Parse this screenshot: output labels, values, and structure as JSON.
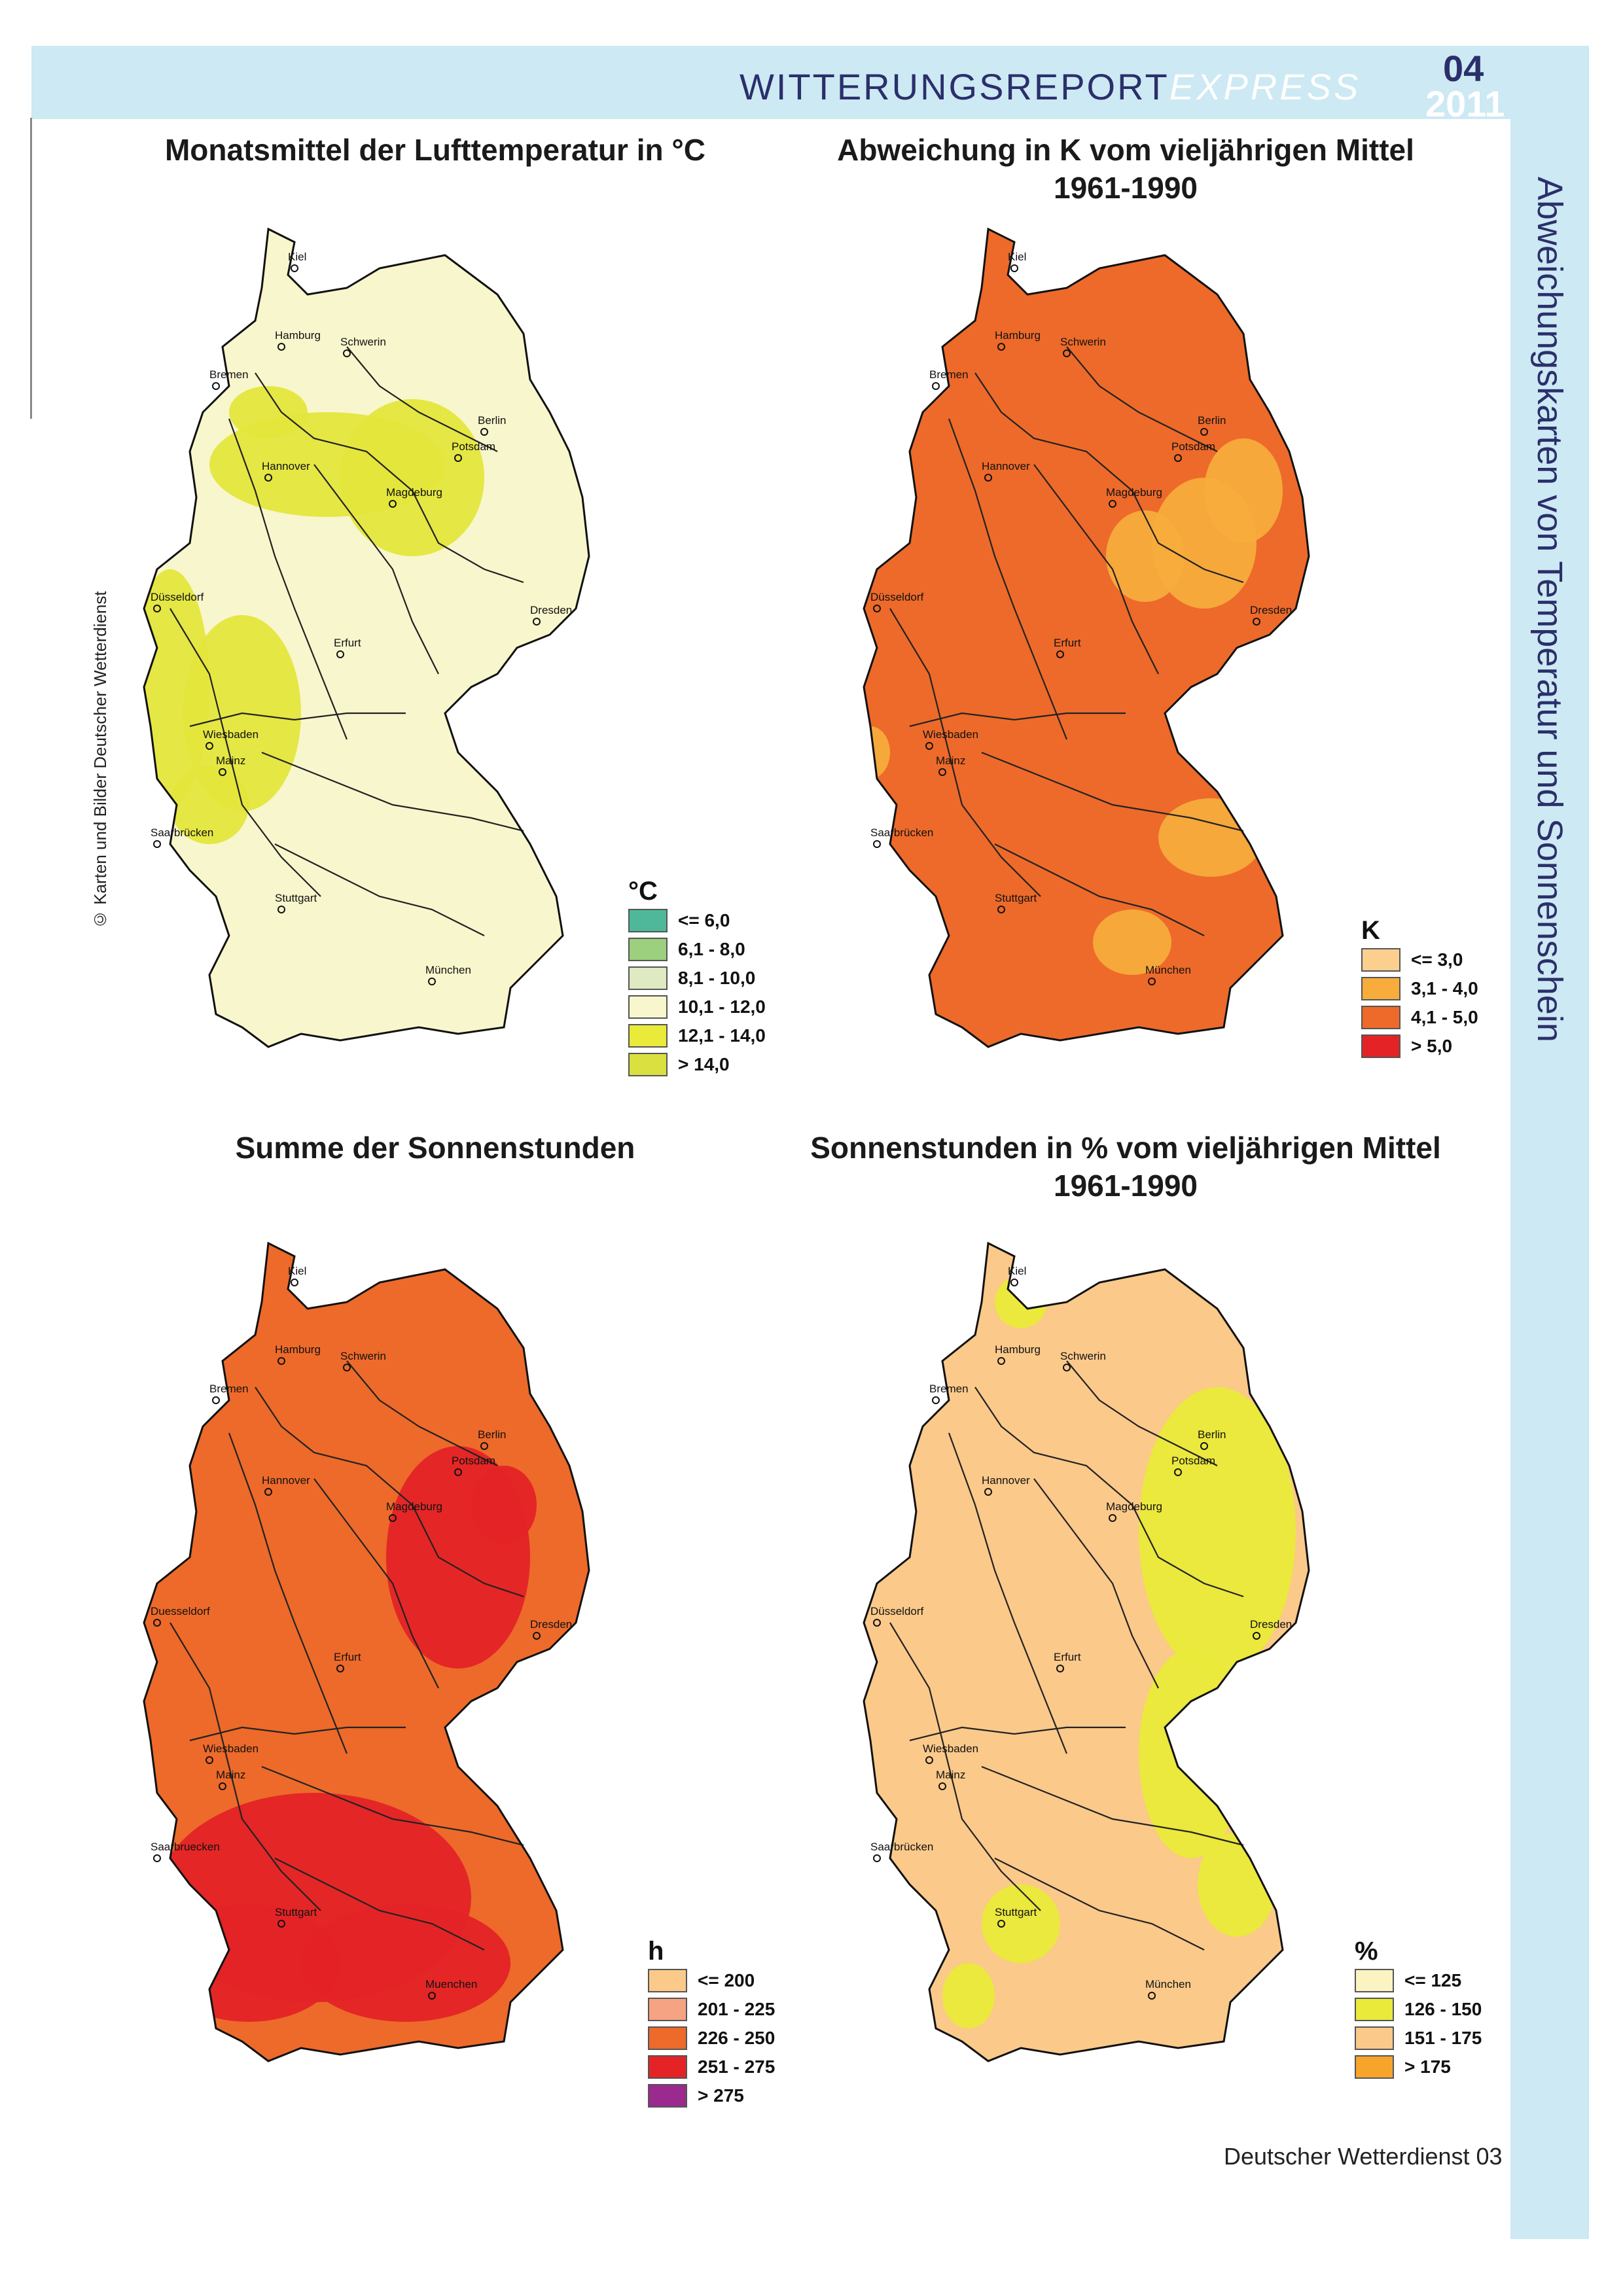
{
  "header": {
    "title_main": "WITTERUNGSREPORT",
    "title_italic": "EXPRESS",
    "issue_number": "04",
    "issue_year": "2011"
  },
  "side_title": "Abweichungskarten von Temperatur und Sonnenschein",
  "copyright": "© Karten und Bilder Deutscher Wetterdienst",
  "maps": {
    "temp_mean": {
      "title": "Monatsmittel der Lufttemperatur in °C",
      "unit": "°C",
      "legend": [
        {
          "label": "<= 6,0",
          "color": "#4fb89a"
        },
        {
          "label": "6,1 - 8,0",
          "color": "#9ccf7e"
        },
        {
          "label": "8,1 - 10,0",
          "color": "#dfe9c2"
        },
        {
          "label": "10,1 - 12,0",
          "color": "#f8f6cc"
        },
        {
          "label": "12,1 - 14,0",
          "color": "#eaea3a"
        },
        {
          "label": "> 14,0",
          "color": "#d9e040"
        }
      ],
      "base_color": "#f8f6cc",
      "accent_color": "#e4e63c"
    },
    "temp_anomaly": {
      "title": "Abweichung in K vom vieljährigen Mittel",
      "title_line2": "1961-1990",
      "unit": "K",
      "legend": [
        {
          "label": "<= 3,0",
          "color": "#fbd08e"
        },
        {
          "label": "3,1 - 4,0",
          "color": "#f7ac3c"
        },
        {
          "label": "4,1 - 5,0",
          "color": "#ed6a2a"
        },
        {
          "label": "> 5,0",
          "color": "#e42326"
        }
      ],
      "base_color": "#ed6a2a",
      "accent_color": "#f7ac3c"
    },
    "sun_sum": {
      "title": "Summe der Sonnenstunden",
      "unit": "h",
      "legend": [
        {
          "label": "<= 200",
          "color": "#fbc98a"
        },
        {
          "label": "201 - 225",
          "color": "#f6a383"
        },
        {
          "label": "226 - 250",
          "color": "#ed6a2a"
        },
        {
          "label": "251 - 275",
          "color": "#e42326"
        },
        {
          "label": "> 275",
          "color": "#9b2a8e"
        }
      ],
      "base_color": "#ed6a2a",
      "accent_color": "#e42326"
    },
    "sun_percent": {
      "title": "Sonnenstunden in % vom vieljährigen Mittel",
      "title_line2": "1961-1990",
      "unit": "%",
      "legend": [
        {
          "label": "<= 125",
          "color": "#fbf4c2"
        },
        {
          "label": "126 - 150",
          "color": "#eaea3a"
        },
        {
          "label": "151 - 175",
          "color": "#fbc98a"
        },
        {
          "label": "> 175",
          "color": "#f7a52a"
        }
      ],
      "base_color": "#fbc98a",
      "accent_color": "#eaea3a"
    }
  },
  "cities": {
    "kiel": "Kiel",
    "hamburg": "Hamburg",
    "schwerin": "Schwerin",
    "bremen": "Bremen",
    "berlin": "Berlin",
    "potsdam": "Potsdam",
    "hannover": "Hannover",
    "magdeburg": "Magdeburg",
    "duesseldorf": "Düsseldorf",
    "duesseldorf_alt": "Duesseldorf",
    "dresden": "Dresden",
    "erfurt": "Erfurt",
    "wiesbaden": "Wiesbaden",
    "mainz": "Mainz",
    "saarbruecken": "Saarbrücken",
    "saarbruecken_alt": "Saarbruecken",
    "stuttgart": "Stuttgart",
    "muenchen": "München",
    "muenchen_alt": "Muenchen"
  },
  "footer": "Deutscher Wetterdienst  03"
}
